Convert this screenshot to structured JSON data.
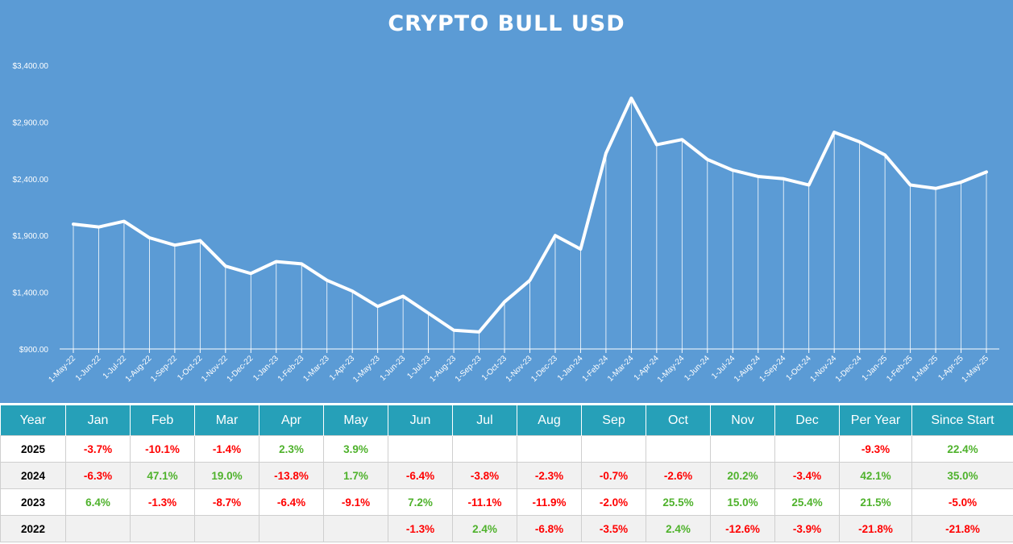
{
  "chart_data": {
    "type": "line",
    "title": "CRYPTO BULL USD",
    "ylim": [
      900,
      3400
    ],
    "yticks": [
      "$900.00",
      "$1,400.00",
      "$1,900.00",
      "$2,400.00",
      "$2,900.00",
      "$3,400.00"
    ],
    "ytick_values": [
      900,
      1400,
      1900,
      2400,
      2900,
      3400
    ],
    "categories": [
      "1-May-22",
      "1-Jun-22",
      "1-Jul-22",
      "1-Aug-22",
      "1-Sep-22",
      "1-Oct-22",
      "1-Nov-22",
      "1-Dec-22",
      "1-Jan-23",
      "1-Feb-23",
      "1-Mar-23",
      "1-Apr-23",
      "1-May-23",
      "1-Jun-23",
      "1-Jul-23",
      "1-Aug-23",
      "1-Sep-23",
      "1-Oct-23",
      "1-Nov-23",
      "1-Dec-23",
      "1-Jan-24",
      "1-Feb-24",
      "1-Mar-24",
      "1-Apr-24",
      "1-May-24",
      "1-Jun-24",
      "1-Jul-24",
      "1-Aug-24",
      "1-Sep-24",
      "1-Oct-24",
      "1-Nov-24",
      "1-Dec-24",
      "1-Jan-25",
      "1-Feb-25",
      "1-Mar-25",
      "1-Apr-25",
      "1-May-25"
    ],
    "values": [
      2000,
      1975,
      2025,
      1880,
      1815,
      1855,
      1630,
      1565,
      1670,
      1650,
      1505,
      1410,
      1275,
      1365,
      1215,
      1065,
      1050,
      1315,
      1505,
      1900,
      1780,
      2625,
      3110,
      2700,
      2745,
      2570,
      2475,
      2420,
      2400,
      2345,
      2810,
      2725,
      2610,
      2345,
      2315,
      2370,
      2460
    ],
    "grid": false,
    "drop_lines": true,
    "line_color": "#ffffff",
    "background": "#5b9bd5"
  },
  "table": {
    "headers": [
      "Year",
      "Jan",
      "Feb",
      "Mar",
      "Apr",
      "May",
      "Jun",
      "Jul",
      "Aug",
      "Sep",
      "Oct",
      "Nov",
      "Dec",
      "Per Year",
      "Since Start"
    ],
    "rows": [
      [
        "2025",
        "-3.7%",
        "-10.1%",
        "-1.4%",
        "2.3%",
        "3.9%",
        "",
        "",
        "",
        "",
        "",
        "",
        "",
        "-9.3%",
        "22.4%"
      ],
      [
        "2024",
        "-6.3%",
        "47.1%",
        "19.0%",
        "-13.8%",
        "1.7%",
        "-6.4%",
        "-3.8%",
        "-2.3%",
        "-0.7%",
        "-2.6%",
        "20.2%",
        "-3.4%",
        "42.1%",
        "35.0%"
      ],
      [
        "2023",
        "6.4%",
        "-1.3%",
        "-8.7%",
        "-6.4%",
        "-9.1%",
        "7.2%",
        "-11.1%",
        "-11.9%",
        "-2.0%",
        "25.5%",
        "15.0%",
        "25.4%",
        "21.5%",
        "-5.0%"
      ],
      [
        "2022",
        "",
        "",
        "",
        "",
        "",
        "-1.3%",
        "2.4%",
        "-6.8%",
        "-3.5%",
        "2.4%",
        "-12.6%",
        "-3.9%",
        "-21.8%",
        "-21.8%"
      ]
    ],
    "colors": {
      "header_bg": "#26a0b8",
      "positive": "#4fb22c",
      "negative": "#ff0000"
    }
  }
}
